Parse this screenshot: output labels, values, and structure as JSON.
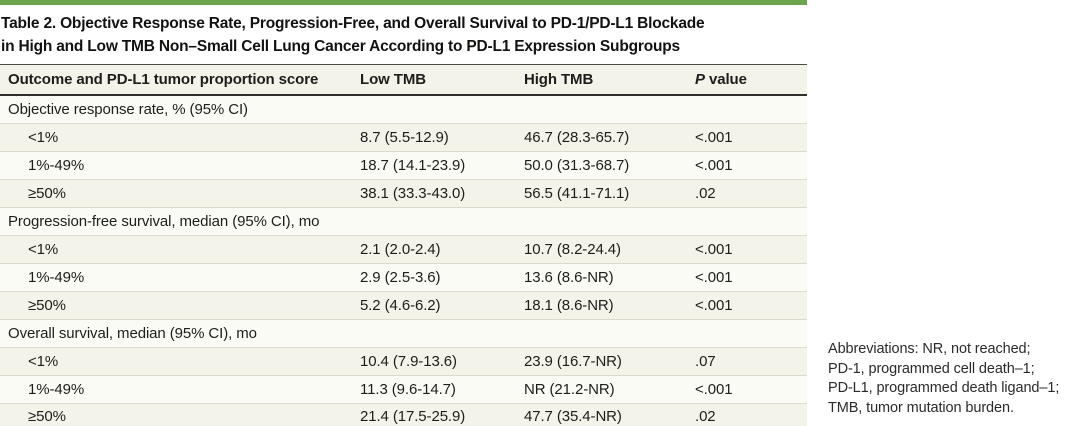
{
  "title": {
    "line1": "Table 2. Objective Response Rate, Progression-Free, and Overall Survival to PD-1/PD-L1 Blockade",
    "line2": "in High and Low TMB Non–Small Cell Lung Cancer According to PD-L1 Expression Subgroups"
  },
  "table": {
    "columns": [
      "Outcome and PD-L1 tumor proportion score",
      "Low TMB",
      "High TMB",
      "P value"
    ],
    "sections": [
      {
        "header": "Objective response rate, % (95% CI)",
        "rows": [
          {
            "label": "<1%",
            "low": "8.7 (5.5-12.9)",
            "high": "46.7 (28.3-65.7)",
            "p": "<.001"
          },
          {
            "label": "1%-49%",
            "low": "18.7 (14.1-23.9)",
            "high": "50.0 (31.3-68.7)",
            "p": "<.001"
          },
          {
            "label": "≥50%",
            "low": "38.1 (33.3-43.0)",
            "high": "56.5 (41.1-71.1)",
            "p": ".02"
          }
        ]
      },
      {
        "header": "Progression-free survival, median (95% CI), mo",
        "rows": [
          {
            "label": "<1%",
            "low": "2.1 (2.0-2.4)",
            "high": "10.7 (8.2-24.4)",
            "p": "<.001"
          },
          {
            "label": "1%-49%",
            "low": "2.9 (2.5-3.6)",
            "high": "13.6 (8.6-NR)",
            "p": "<.001"
          },
          {
            "label": "≥50%",
            "low": "5.2 (4.6-6.2)",
            "high": "18.1 (8.6-NR)",
            "p": "<.001"
          }
        ]
      },
      {
        "header": "Overall survival, median (95% CI), mo",
        "rows": [
          {
            "label": "<1%",
            "low": "10.4 (7.9-13.6)",
            "high": "23.9 (16.7-NR)",
            "p": ".07"
          },
          {
            "label": "1%-49%",
            "low": "11.3 (9.6-14.7)",
            "high": "NR (21.2-NR)",
            "p": "<.001"
          },
          {
            "label": "≥50%",
            "low": "21.4 (17.5-25.9)",
            "high": "47.7 (35.4-NR)",
            "p": ".02"
          }
        ]
      }
    ]
  },
  "footnote": {
    "lines": [
      "Abbreviations: NR, not reached;",
      "PD-1, programmed cell death–1;",
      "PD-L1, programmed death ligand–1;",
      "TMB, tumor mutation burden."
    ]
  },
  "colors": {
    "accent_green": "#6ba54d",
    "row_shade": "#f4f3e9"
  }
}
